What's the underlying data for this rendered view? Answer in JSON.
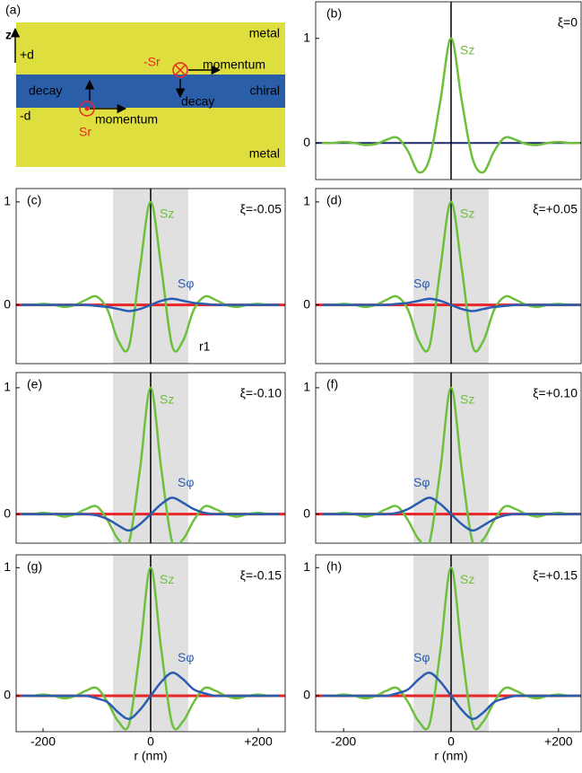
{
  "diagram": {
    "label": "(a)",
    "axis": "z",
    "top": "+d",
    "bottom": "-d",
    "metal_top": "metal",
    "metal_bottom": "metal",
    "chiral": "chiral",
    "decay_left": "decay",
    "decay_right": "decay",
    "momentum_top": "momentum",
    "momentum_bottom": "momentum",
    "s_top": "-Sr",
    "s_bottom": "Sr"
  },
  "chart_data": [
    {
      "type": "line",
      "label": "(b)",
      "xi": "ξ=0",
      "xlim": [
        -252,
        242
      ],
      "ylim": [
        -0.35,
        1.35
      ],
      "yticks": [
        0,
        1
      ],
      "zero_line_color": "#1e2a6e",
      "x": [
        -240,
        -220,
        -200,
        -180,
        -160,
        -140,
        -120,
        -100,
        -80,
        -60,
        -40,
        -20,
        0,
        20,
        40,
        60,
        80,
        100,
        120,
        140,
        160,
        180,
        200,
        220,
        240
      ],
      "series": [
        {
          "name": "Sz",
          "color": "#6dbf3c",
          "values": [
            0,
            0,
            0.01,
            0,
            -0.02,
            -0.01,
            0.03,
            0.05,
            -0.08,
            -0.28,
            -0.15,
            0.4,
            1,
            0.4,
            -0.15,
            -0.28,
            -0.08,
            0.05,
            0.03,
            -0.01,
            -0.02,
            0,
            0.01,
            0,
            0
          ]
        }
      ]
    },
    {
      "type": "line",
      "label": "(c)",
      "xi": "ξ=-0.05",
      "note": "r1",
      "xlim": [
        -250,
        250
      ],
      "ylim": [
        -0.57,
        1.13
      ],
      "yticks": [
        0,
        1
      ],
      "zero_line_color": "#e8262a",
      "shade": [
        -70,
        70
      ],
      "x": [
        -240,
        -220,
        -200,
        -180,
        -160,
        -140,
        -120,
        -100,
        -80,
        -60,
        -40,
        -20,
        0,
        20,
        40,
        60,
        80,
        100,
        120,
        140,
        160,
        180,
        200,
        220,
        240
      ],
      "series": [
        {
          "name": "Sz",
          "color": "#6dbf3c",
          "values": [
            0,
            0,
            0.01,
            0,
            -0.02,
            0,
            0.05,
            0.08,
            -0.05,
            -0.35,
            -0.4,
            0.35,
            1,
            0.35,
            -0.4,
            -0.35,
            -0.05,
            0.08,
            0.05,
            0,
            -0.02,
            0,
            0.01,
            0,
            0
          ]
        },
        {
          "name": "Sφ",
          "color": "#2a5cb0",
          "values": [
            0,
            0,
            0,
            0,
            0,
            0,
            0,
            -0.01,
            -0.02,
            -0.04,
            -0.06,
            -0.04,
            0,
            0.04,
            0.06,
            0.04,
            0.02,
            0.01,
            0,
            0,
            0,
            0,
            0,
            0,
            0
          ]
        }
      ]
    },
    {
      "type": "line",
      "label": "(d)",
      "xi": "ξ=+0.05",
      "xlim": [
        -252,
        242
      ],
      "ylim": [
        -0.57,
        1.13
      ],
      "yticks": [
        0,
        1
      ],
      "zero_line_color": "#e8262a",
      "shade": [
        -70,
        70
      ],
      "x": [
        -240,
        -220,
        -200,
        -180,
        -160,
        -140,
        -120,
        -100,
        -80,
        -60,
        -40,
        -20,
        0,
        20,
        40,
        60,
        80,
        100,
        120,
        140,
        160,
        180,
        200,
        220,
        240
      ],
      "series": [
        {
          "name": "Sz",
          "color": "#6dbf3c",
          "values": [
            0,
            0,
            0.01,
            0,
            -0.02,
            0,
            0.05,
            0.08,
            -0.05,
            -0.35,
            -0.4,
            0.35,
            1,
            0.35,
            -0.4,
            -0.35,
            -0.05,
            0.08,
            0.05,
            0,
            -0.02,
            0,
            0.01,
            0,
            0
          ]
        },
        {
          "name": "Sφ",
          "color": "#2a5cb0",
          "values": [
            0,
            0,
            0,
            0,
            0,
            0,
            0,
            0.01,
            0.02,
            0.04,
            0.06,
            0.04,
            0,
            -0.04,
            -0.06,
            -0.04,
            -0.02,
            -0.01,
            0,
            0,
            0,
            0,
            0,
            0,
            0
          ]
        }
      ]
    },
    {
      "type": "line",
      "label": "(e)",
      "xi": "ξ=-0.10",
      "xlim": [
        -250,
        250
      ],
      "ylim": [
        -0.23,
        1.12
      ],
      "yticks": [
        0,
        1
      ],
      "zero_line_color": "#e8262a",
      "shade": [
        -70,
        70
      ],
      "x": [
        -240,
        -220,
        -200,
        -180,
        -160,
        -140,
        -120,
        -100,
        -80,
        -60,
        -40,
        -20,
        0,
        20,
        40,
        60,
        80,
        100,
        120,
        140,
        160,
        180,
        200,
        220,
        240
      ],
      "series": [
        {
          "name": "Sz",
          "color": "#6dbf3c",
          "values": [
            0,
            0,
            0.01,
            0,
            -0.02,
            0,
            0.04,
            0.06,
            -0.05,
            -0.2,
            -0.22,
            0.35,
            1,
            0.35,
            -0.22,
            -0.2,
            -0.05,
            0.06,
            0.04,
            0,
            -0.02,
            0,
            0.01,
            0,
            0
          ]
        },
        {
          "name": "Sφ",
          "color": "#2a5cb0",
          "values": [
            0,
            0,
            0,
            0,
            0,
            0,
            0,
            -0.01,
            -0.04,
            -0.09,
            -0.13,
            -0.08,
            0,
            0.08,
            0.13,
            0.09,
            0.04,
            0.01,
            0,
            0,
            0,
            0,
            0,
            0,
            0
          ]
        }
      ]
    },
    {
      "type": "line",
      "label": "(f)",
      "xi": "ξ=+0.10",
      "xlim": [
        -252,
        242
      ],
      "ylim": [
        -0.23,
        1.12
      ],
      "yticks": [
        0,
        1
      ],
      "zero_line_color": "#e8262a",
      "shade": [
        -70,
        70
      ],
      "x": [
        -240,
        -220,
        -200,
        -180,
        -160,
        -140,
        -120,
        -100,
        -80,
        -60,
        -40,
        -20,
        0,
        20,
        40,
        60,
        80,
        100,
        120,
        140,
        160,
        180,
        200,
        220,
        240
      ],
      "series": [
        {
          "name": "Sz",
          "color": "#6dbf3c",
          "values": [
            0,
            0,
            0.01,
            0,
            -0.02,
            0,
            0.04,
            0.06,
            -0.05,
            -0.2,
            -0.22,
            0.35,
            1,
            0.35,
            -0.22,
            -0.2,
            -0.05,
            0.06,
            0.04,
            0,
            -0.02,
            0,
            0.01,
            0,
            0
          ]
        },
        {
          "name": "Sφ",
          "color": "#2a5cb0",
          "values": [
            0,
            0,
            0,
            0,
            0,
            0,
            0,
            0.01,
            0.04,
            0.09,
            0.13,
            0.08,
            0,
            -0.08,
            -0.13,
            -0.09,
            -0.04,
            -0.01,
            0,
            0,
            0,
            0,
            0,
            0,
            0
          ]
        }
      ]
    },
    {
      "type": "line",
      "label": "(g)",
      "xi": "ξ=-0.15",
      "xlim": [
        -250,
        250
      ],
      "ylim": [
        -0.28,
        1.1
      ],
      "yticks": [
        0,
        1
      ],
      "zero_line_color": "#e8262a",
      "shade": [
        -70,
        70
      ],
      "xticks": [
        -200,
        0,
        {
          "value": 200,
          "label": "+200"
        }
      ],
      "xlabel": "r (nm)",
      "x": [
        -240,
        -220,
        -200,
        -180,
        -160,
        -140,
        -120,
        -100,
        -80,
        -60,
        -40,
        -20,
        0,
        20,
        40,
        60,
        80,
        100,
        120,
        140,
        160,
        180,
        200,
        220,
        240
      ],
      "series": [
        {
          "name": "Sz",
          "color": "#6dbf3c",
          "values": [
            0,
            0,
            0.01,
            0,
            -0.02,
            0,
            0.04,
            0.06,
            -0.05,
            -0.2,
            -0.22,
            0.35,
            1,
            0.35,
            -0.22,
            -0.2,
            -0.05,
            0.06,
            0.04,
            0,
            -0.02,
            0,
            0.01,
            0,
            0
          ]
        },
        {
          "name": "Sφ",
          "color": "#2a5cb0",
          "values": [
            0,
            0,
            0,
            0,
            0,
            0,
            0,
            -0.02,
            -0.05,
            -0.13,
            -0.18,
            -0.11,
            0,
            0.11,
            0.18,
            0.13,
            0.05,
            0.02,
            0,
            0,
            0,
            0,
            0,
            0,
            0
          ]
        }
      ]
    },
    {
      "type": "line",
      "label": "(h)",
      "xi": "ξ=+0.15",
      "xlim": [
        -252,
        242
      ],
      "ylim": [
        -0.28,
        1.1
      ],
      "yticks": [
        0,
        1
      ],
      "zero_line_color": "#e8262a",
      "shade": [
        -70,
        70
      ],
      "xticks": [
        -200,
        0,
        {
          "value": 200,
          "label": "+200"
        }
      ],
      "xlabel": "r (nm)",
      "x": [
        -240,
        -220,
        -200,
        -180,
        -160,
        -140,
        -120,
        -100,
        -80,
        -60,
        -40,
        -20,
        0,
        20,
        40,
        60,
        80,
        100,
        120,
        140,
        160,
        180,
        200,
        220,
        240
      ],
      "series": [
        {
          "name": "Sz",
          "color": "#6dbf3c",
          "values": [
            0,
            0,
            0.01,
            0,
            -0.02,
            0,
            0.04,
            0.06,
            -0.05,
            -0.2,
            -0.22,
            0.35,
            1,
            0.35,
            -0.22,
            -0.2,
            -0.05,
            0.06,
            0.04,
            0,
            -0.02,
            0,
            0.01,
            0,
            0
          ]
        },
        {
          "name": "Sφ",
          "color": "#2a5cb0",
          "values": [
            0,
            0,
            0,
            0,
            0,
            0,
            0,
            0.02,
            0.05,
            0.13,
            0.18,
            0.11,
            0,
            -0.11,
            -0.18,
            -0.13,
            -0.05,
            -0.02,
            0,
            0,
            0,
            0,
            0,
            0,
            0
          ]
        }
      ]
    }
  ]
}
